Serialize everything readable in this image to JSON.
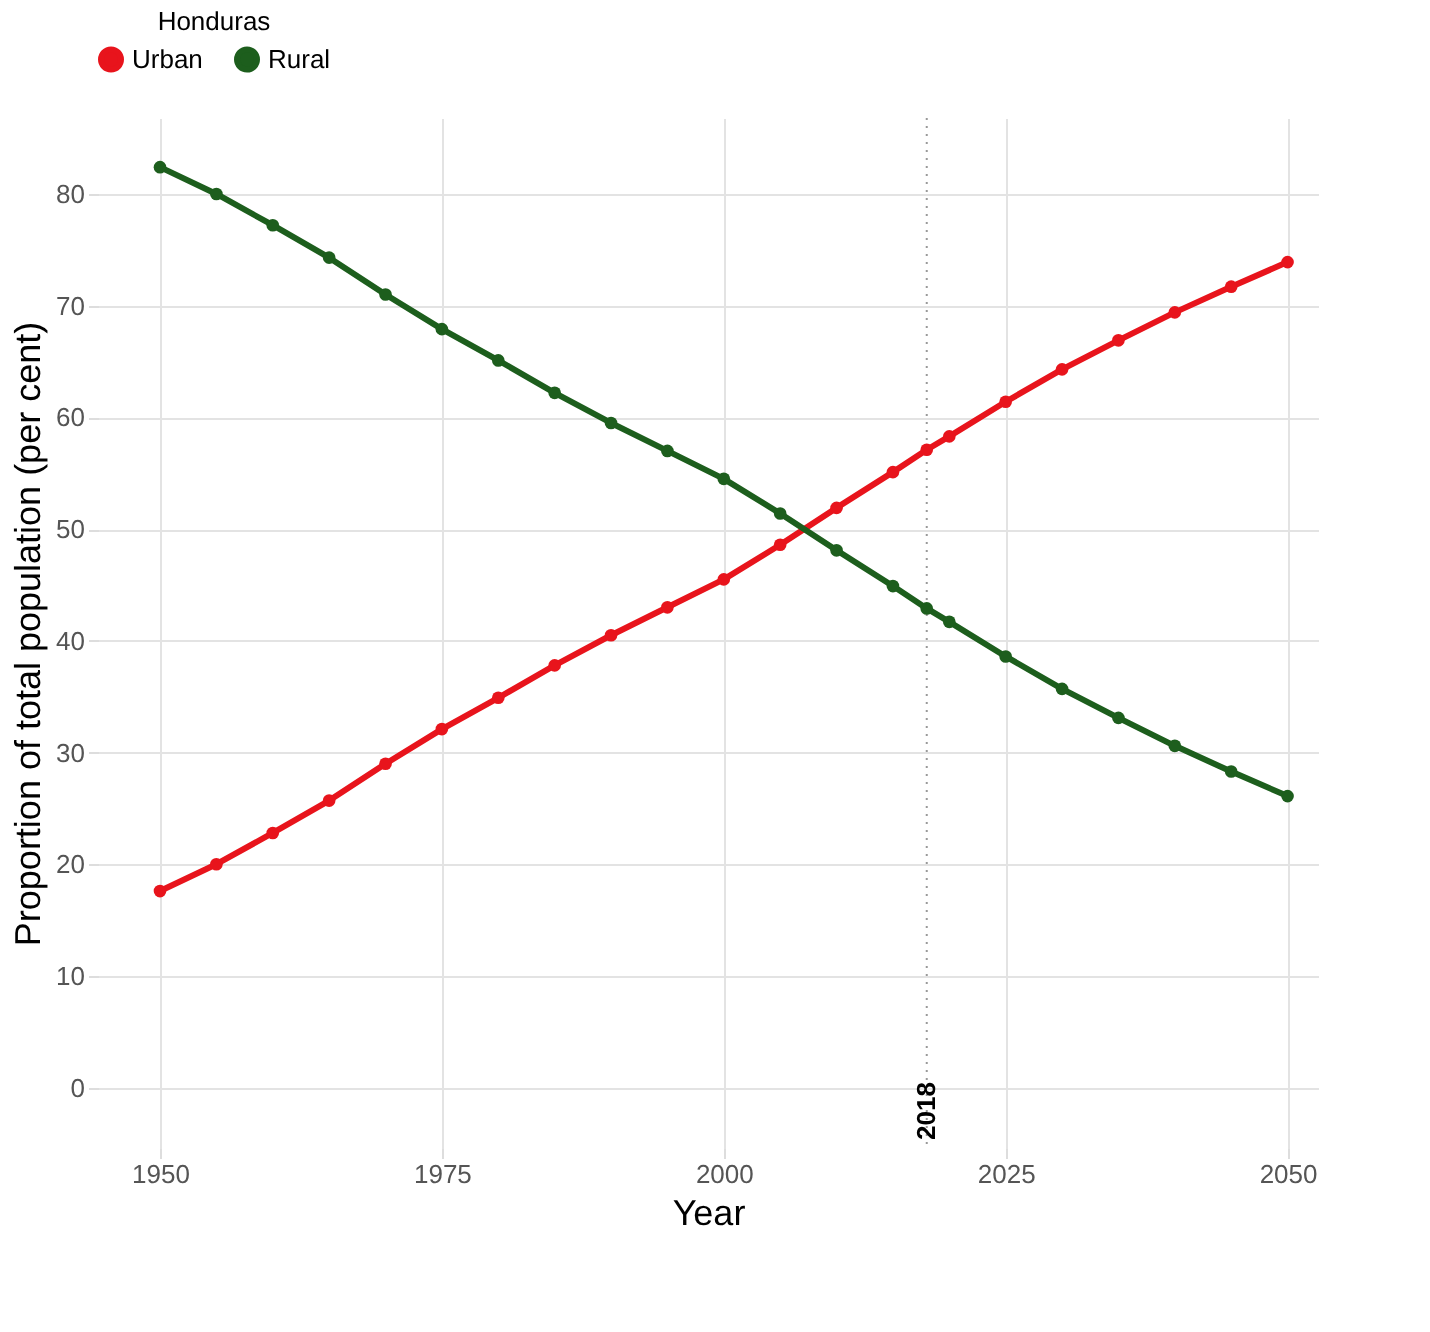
{
  "chart_data": {
    "type": "line",
    "legend_title": "Honduras",
    "xlabel": "Year",
    "ylabel": "Proportion of total population (per cent)",
    "x": [
      1950,
      1955,
      1960,
      1965,
      1970,
      1975,
      1980,
      1985,
      1990,
      1995,
      2000,
      2005,
      2010,
      2015,
      2018,
      2020,
      2025,
      2030,
      2035,
      2040,
      2045,
      2050
    ],
    "series": [
      {
        "name": "Urban",
        "color": "#e8141c",
        "values": [
          17.6,
          20.0,
          22.8,
          25.7,
          29.0,
          32.1,
          34.9,
          37.8,
          40.5,
          43.0,
          45.5,
          48.6,
          51.9,
          55.1,
          57.1,
          58.3,
          61.4,
          64.3,
          66.9,
          69.4,
          71.7,
          73.9
        ]
      },
      {
        "name": "Rural",
        "color": "#1d5e1d",
        "values": [
          82.4,
          80.0,
          77.2,
          74.3,
          71.0,
          67.9,
          65.1,
          62.2,
          59.5,
          57.0,
          54.5,
          51.4,
          48.1,
          44.9,
          42.9,
          41.7,
          38.6,
          35.7,
          33.1,
          30.6,
          28.3,
          26.1
        ]
      }
    ],
    "xlim": [
      1944.5,
      2052.7
    ],
    "xticks": [
      1950,
      1975,
      2000,
      2025,
      2050
    ],
    "ylim": [
      -5.4,
      86.8
    ],
    "yticks": [
      0,
      10,
      20,
      30,
      40,
      50,
      60,
      70,
      80
    ],
    "ref_lines": [
      {
        "axis": "x",
        "value": 2018,
        "label": "2018",
        "color": "#999999",
        "line_style": "dotted"
      }
    ],
    "grid": true,
    "legend": "top",
    "marker": "circle",
    "line_style": "solid"
  }
}
